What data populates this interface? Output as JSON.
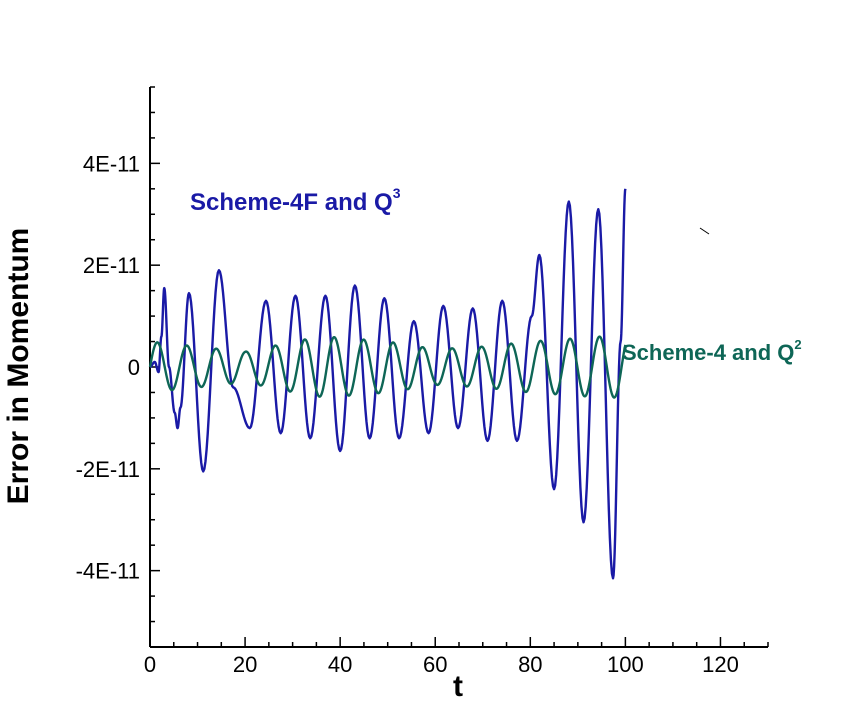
{
  "chart_data": {
    "type": "line",
    "xlabel": "t",
    "ylabel": "Error in Momentum",
    "xlim": [
      0,
      130
    ],
    "ylim": [
      -5.5e-11,
      5.5e-11
    ],
    "x_ticks": [
      0,
      20,
      40,
      60,
      80,
      100,
      120
    ],
    "x_tick_labels": [
      "0",
      "20",
      "40",
      "60",
      "80",
      "100",
      "120"
    ],
    "y_ticks": [
      -4e-11,
      -2e-11,
      0,
      2e-11,
      4e-11
    ],
    "y_tick_labels": [
      "-4E-11",
      "-2E-11",
      "0",
      "2E-11",
      "4E-11"
    ],
    "grid": false,
    "series": [
      {
        "label": {
          "text": "Scheme-4F and Q",
          "sup": "3"
        },
        "color": "#1a1aa6",
        "x": [
          0.0,
          1.0,
          1.8,
          2.4,
          3.0,
          4.0,
          5.2,
          5.8,
          6.4,
          8.2,
          11.2,
          14.5,
          17.5,
          21.0,
          24.4,
          27.5,
          30.6,
          33.7,
          36.9,
          40.0,
          43.1,
          46.2,
          49.3,
          52.4,
          55.5,
          58.6,
          61.7,
          64.8,
          67.9,
          71.0,
          74.1,
          77.2,
          80.3,
          81.9,
          85.0,
          88.1,
          91.2,
          94.3,
          97.4,
          99.0,
          100.0
        ],
        "y": [
          0,
          1e-12,
          -1e-12,
          6e-12,
          1.55e-11,
          0,
          -9e-12,
          -1.2e-11,
          -8e-12,
          1.45e-11,
          -2.05e-11,
          1.9e-11,
          -4e-12,
          -1.2e-11,
          1.3e-11,
          -1.3e-11,
          1.4e-11,
          -1.4e-11,
          1.4e-11,
          -1.65e-11,
          1.6e-11,
          -1.4e-11,
          1.35e-11,
          -1.4e-11,
          9e-12,
          -1.3e-11,
          1.2e-11,
          -1.2e-11,
          1.15e-11,
          -1.45e-11,
          1.3e-11,
          -1.45e-11,
          1e-11,
          2.2e-11,
          -2.4e-11,
          3.25e-11,
          -3.05e-11,
          3.1e-11,
          -4.15e-11,
          5e-12,
          3.5e-11
        ]
      },
      {
        "label": {
          "text": "Scheme-4 and Q",
          "sup": "2"
        },
        "color": "#0e6656",
        "amplitude_profile": {
          "x": [
            0,
            20,
            33,
            37,
            50,
            60,
            70,
            80,
            95,
            100
          ],
          "y": [
            5e-12,
            3e-12,
            5.5e-12,
            6e-12,
            5e-12,
            3.5e-12,
            4e-12,
            5e-12,
            6e-12,
            6e-12
          ]
        },
        "period": 6.2,
        "x_range": [
          0,
          100
        ]
      }
    ]
  }
}
